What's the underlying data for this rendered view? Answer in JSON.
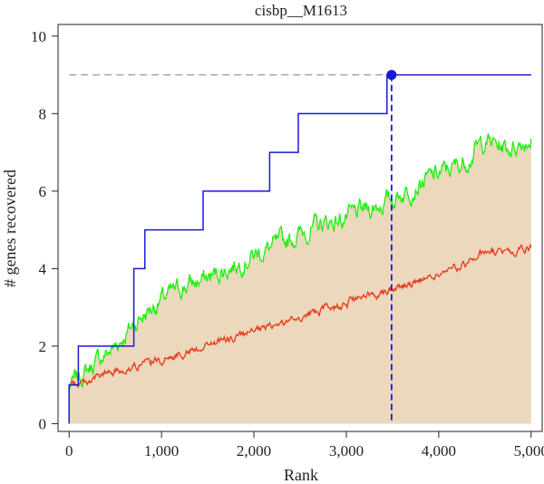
{
  "chart_data": {
    "type": "line",
    "title": "cisbp__M1613",
    "xlabel": "Rank",
    "ylabel": "# genes recovered",
    "xlim": [
      -120,
      5120
    ],
    "ylim": [
      -0.2,
      10.3
    ],
    "x_ticks": [
      0,
      1000,
      2000,
      3000,
      4000,
      5000
    ],
    "x_tick_labels": [
      "0",
      "1,000",
      "2,000",
      "3,000",
      "4,000",
      "5,000"
    ],
    "y_ticks": [
      0,
      2,
      4,
      6,
      8,
      10
    ],
    "y_tick_labels": [
      "0",
      "2",
      "4",
      "6",
      "8",
      "10"
    ],
    "grid": false,
    "colors": {
      "band": "#ecd8bd",
      "mean_line": "#e23b1a",
      "upper_line": "#22ee11",
      "recovery_line": "#1a1ad6",
      "threshold": "#999999"
    },
    "series": [
      {
        "role": "recovery-curve",
        "x": [
          0,
          0,
          100,
          100,
          700,
          700,
          820,
          820,
          1450,
          1450,
          2170,
          2170,
          2480,
          2480,
          3440,
          3440,
          3490,
          3490,
          5000
        ],
        "y": [
          0,
          1,
          1,
          2,
          2,
          4,
          4,
          5,
          5,
          6,
          6,
          7,
          7,
          8,
          8,
          9,
          9,
          9,
          9
        ]
      },
      {
        "role": "mean",
        "x": [
          0,
          250,
          500,
          750,
          1000,
          1250,
          1500,
          1750,
          2000,
          2250,
          2500,
          2750,
          3000,
          3250,
          3500,
          3750,
          4000,
          4250,
          4500,
          4750,
          5000
        ],
        "y": [
          0.95,
          1.15,
          1.35,
          1.5,
          1.65,
          1.85,
          2.05,
          2.2,
          2.35,
          2.55,
          2.75,
          2.95,
          3.1,
          3.3,
          3.5,
          3.65,
          3.85,
          4.05,
          4.45,
          4.4,
          4.55
        ]
      },
      {
        "role": "mean-plus-sd",
        "x": [
          0,
          250,
          500,
          750,
          1000,
          1250,
          1500,
          1750,
          2000,
          2250,
          2500,
          2750,
          3000,
          3250,
          3500,
          3750,
          4000,
          4250,
          4500,
          4750,
          5000
        ],
        "y": [
          0.95,
          1.5,
          2.0,
          2.7,
          3.2,
          3.55,
          3.75,
          4.05,
          4.35,
          4.6,
          4.9,
          5.15,
          5.3,
          5.55,
          5.8,
          6.15,
          6.45,
          6.7,
          7.3,
          7.1,
          7.35
        ]
      }
    ],
    "highlight_point": {
      "x": 3490,
      "y": 9
    },
    "threshold_y": 9
  }
}
